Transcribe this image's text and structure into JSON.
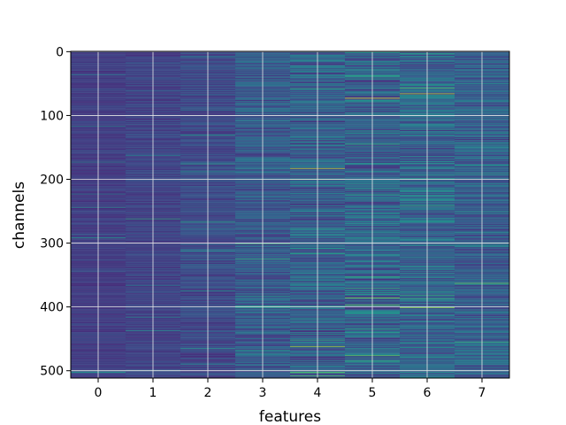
{
  "chart_data": {
    "type": "heatmap",
    "title": "",
    "xlabel": "features",
    "ylabel": "channels",
    "x_ticks": [
      "0",
      "1",
      "2",
      "3",
      "4",
      "5",
      "6",
      "7"
    ],
    "y_ticks": [
      "0",
      "100",
      "200",
      "300",
      "400",
      "500"
    ],
    "y_tick_values": [
      0,
      100,
      200,
      300,
      400,
      500
    ],
    "n_features": 8,
    "n_channels": 512,
    "xlim": [
      -0.5,
      7.5
    ],
    "ylim": [
      511.5,
      -0.5
    ],
    "y_axis_inverted": true,
    "grid": true,
    "colormap": "viridis",
    "column_mean_intensity": [
      0.18,
      0.2,
      0.22,
      0.28,
      0.3,
      0.32,
      0.33,
      0.3
    ],
    "column_variability": [
      0.05,
      0.06,
      0.08,
      0.12,
      0.16,
      0.18,
      0.17,
      0.14
    ],
    "notable_bright_cells": [
      {
        "feature": 5,
        "channel": 73,
        "value": 0.95
      },
      {
        "feature": 6,
        "channel": 66,
        "value": 0.9
      },
      {
        "feature": 4,
        "channel": 183,
        "value": 0.9
      },
      {
        "feature": 4,
        "channel": 462,
        "value": 0.85
      },
      {
        "feature": 5,
        "channel": 386,
        "value": 0.8
      },
      {
        "feature": 7,
        "channel": 363,
        "value": 0.75
      },
      {
        "feature": 3,
        "channel": 301,
        "value": 0.65
      },
      {
        "feature": 1,
        "channel": 262,
        "value": 0.6
      },
      {
        "feature": 0,
        "channel": 500,
        "value": 0.6
      }
    ],
    "colors": {
      "background": "#ffffff",
      "grid": "#e6e6e6",
      "axis": "#000000"
    }
  }
}
